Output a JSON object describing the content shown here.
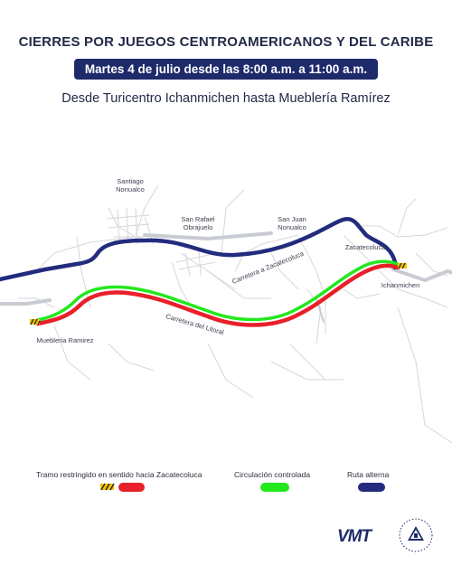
{
  "header": {
    "title": "CIERRES POR JUEGOS CENTROAMERICANOS Y DEL CARIBE",
    "date": "Martes 4 de julio desde las 8:00 a.m. a 11:00 a.m.",
    "subtitle": "Desde Turicentro Ichanmichen hasta Mueblería Ramírez"
  },
  "map": {
    "places": {
      "santiago_1": "Santiago",
      "santiago_2": "Nonualco",
      "san_rafael_1": "San Rafael",
      "san_rafael_2": "Obrajuelo",
      "san_juan_1": "San Juan",
      "san_juan_2": "Nonualco",
      "zacatecoluca": "Zacatecoluca",
      "ichanmichen": "Ichanmichen",
      "muebleria": "Muebleria Ramirez"
    },
    "roads": {
      "carretera_zacatecoluca": "Carretera a Zacatecoluca",
      "carretera_litoral": "Carretera del Litoral"
    },
    "colors": {
      "restricted": "#e8202a",
      "controlled": "#22e81c",
      "alternate": "#232b7e",
      "road_gray": "#c8ccd2",
      "street": "#d4d7dc"
    }
  },
  "legend": {
    "restricted": "Tramo restringido en sentido hacia Zacatecoluca",
    "controlled": "Circulación controlada",
    "alternate": "Ruta alterna"
  },
  "footer": {
    "logo": "VMT",
    "seal_icon": "el-salvador-seal-icon"
  }
}
